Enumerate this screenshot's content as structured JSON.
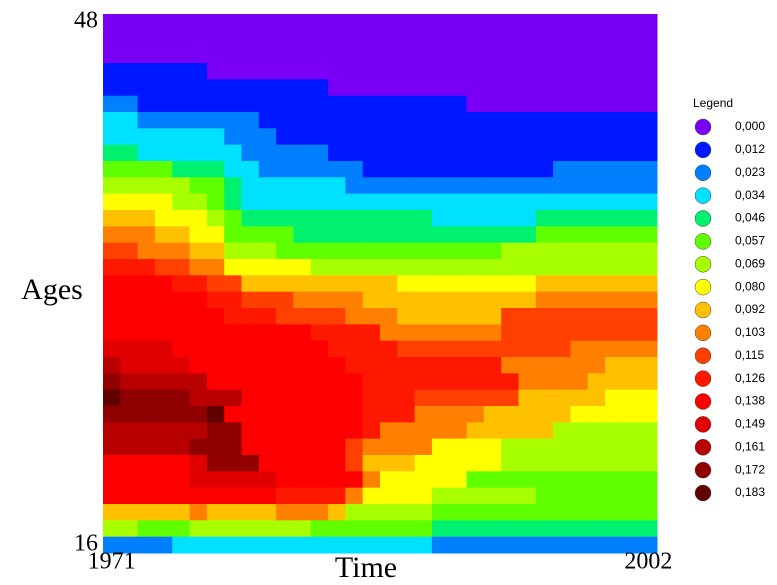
{
  "chart_data": {
    "type": "heatmap",
    "x_label": "Time",
    "y_label": "Ages",
    "xlim": [
      1971,
      2002
    ],
    "ylim": [
      16,
      48
    ],
    "xticks": [
      1971,
      2002
    ],
    "yticks": [
      16,
      48
    ],
    "x": [
      1971,
      1972,
      1973,
      1974,
      1975,
      1976,
      1977,
      1978,
      1979,
      1980,
      1981,
      1982,
      1983,
      1984,
      1985,
      1986,
      1987,
      1988,
      1989,
      1990,
      1991,
      1992,
      1993,
      1994,
      1995,
      1996,
      1997,
      1998,
      1999,
      2000,
      2001,
      2002
    ],
    "y": [
      48,
      47,
      46,
      45,
      44,
      43,
      42,
      41,
      40,
      39,
      38,
      37,
      36,
      35,
      34,
      33,
      32,
      31,
      30,
      29,
      28,
      27,
      26,
      25,
      24,
      23,
      22,
      21,
      20,
      19,
      18,
      17,
      16
    ],
    "z": [
      [
        0,
        0,
        0,
        0,
        0,
        0,
        0,
        0,
        0,
        0,
        0,
        0,
        0,
        0,
        0,
        0,
        0,
        0,
        0,
        0,
        0,
        0,
        0,
        0,
        0,
        0,
        0,
        0,
        0,
        0,
        0,
        0
      ],
      [
        0,
        0,
        0,
        0,
        0,
        0,
        0,
        0,
        0,
        0,
        0,
        0,
        0,
        0,
        0,
        0,
        0,
        0,
        0,
        0,
        0,
        0,
        0,
        0,
        0,
        0,
        0,
        0,
        0,
        0,
        0,
        0
      ],
      [
        0,
        0,
        0,
        0,
        0,
        0,
        0,
        0,
        0,
        0,
        0,
        0,
        0,
        0,
        0,
        0,
        0,
        0,
        0,
        0,
        0,
        0,
        0,
        0,
        0,
        0,
        0,
        0,
        0,
        0,
        0,
        0
      ],
      [
        0.012,
        0.012,
        0.012,
        0.012,
        0.012,
        0.012,
        0,
        0,
        0,
        0,
        0,
        0,
        0,
        0,
        0,
        0,
        0,
        0,
        0,
        0,
        0,
        0,
        0,
        0,
        0,
        0,
        0,
        0,
        0,
        0,
        0,
        0
      ],
      [
        0.012,
        0.012,
        0.012,
        0.012,
        0.012,
        0.012,
        0.012,
        0.012,
        0.012,
        0.012,
        0.012,
        0.012,
        0.012,
        0,
        0,
        0,
        0,
        0,
        0,
        0,
        0,
        0,
        0,
        0,
        0,
        0,
        0,
        0,
        0,
        0,
        0,
        0
      ],
      [
        0.023,
        0.023,
        0.012,
        0.012,
        0.012,
        0.012,
        0.012,
        0.012,
        0.012,
        0.012,
        0.012,
        0.012,
        0.012,
        0.012,
        0.012,
        0.012,
        0.012,
        0.012,
        0.012,
        0.012,
        0.012,
        0,
        0,
        0,
        0,
        0,
        0,
        0,
        0,
        0,
        0,
        0
      ],
      [
        0.034,
        0.034,
        0.023,
        0.023,
        0.023,
        0.023,
        0.023,
        0.023,
        0.023,
        0.012,
        0.012,
        0.012,
        0.012,
        0.012,
        0.012,
        0.012,
        0.012,
        0.012,
        0.012,
        0.012,
        0.012,
        0.012,
        0.012,
        0.012,
        0.012,
        0.012,
        0.012,
        0.012,
        0.012,
        0.012,
        0.012,
        0.012
      ],
      [
        0.034,
        0.034,
        0.034,
        0.034,
        0.034,
        0.034,
        0.034,
        0.023,
        0.023,
        0.023,
        0.012,
        0.012,
        0.012,
        0.012,
        0.012,
        0.012,
        0.012,
        0.012,
        0.012,
        0.012,
        0.012,
        0.012,
        0.012,
        0.012,
        0.012,
        0.012,
        0.012,
        0.012,
        0.012,
        0.012,
        0.012,
        0.012
      ],
      [
        0.046,
        0.046,
        0.034,
        0.034,
        0.034,
        0.034,
        0.034,
        0.034,
        0.023,
        0.023,
        0.023,
        0.023,
        0.023,
        0.012,
        0.012,
        0.012,
        0.012,
        0.012,
        0.012,
        0.012,
        0.012,
        0.012,
        0.012,
        0.012,
        0.012,
        0.012,
        0.012,
        0.012,
        0.012,
        0.012,
        0.012,
        0.012
      ],
      [
        0.057,
        0.057,
        0.057,
        0.057,
        0.046,
        0.046,
        0.046,
        0.034,
        0.034,
        0.023,
        0.023,
        0.023,
        0.023,
        0.023,
        0.023,
        0.012,
        0.012,
        0.012,
        0.012,
        0.012,
        0.012,
        0.012,
        0.012,
        0.012,
        0.012,
        0.012,
        0.023,
        0.023,
        0.023,
        0.023,
        0.023,
        0.023
      ],
      [
        0.069,
        0.069,
        0.069,
        0.069,
        0.069,
        0.057,
        0.057,
        0.046,
        0.034,
        0.034,
        0.034,
        0.034,
        0.034,
        0.034,
        0.023,
        0.023,
        0.023,
        0.023,
        0.023,
        0.023,
        0.023,
        0.023,
        0.023,
        0.023,
        0.023,
        0.023,
        0.023,
        0.023,
        0.023,
        0.023,
        0.023,
        0.023
      ],
      [
        0.08,
        0.08,
        0.08,
        0.08,
        0.069,
        0.069,
        0.057,
        0.046,
        0.034,
        0.034,
        0.034,
        0.034,
        0.034,
        0.034,
        0.034,
        0.034,
        0.034,
        0.034,
        0.034,
        0.034,
        0.034,
        0.034,
        0.034,
        0.034,
        0.034,
        0.034,
        0.034,
        0.034,
        0.034,
        0.034,
        0.034,
        0.034
      ],
      [
        0.092,
        0.092,
        0.092,
        0.08,
        0.08,
        0.08,
        0.069,
        0.057,
        0.046,
        0.046,
        0.046,
        0.046,
        0.046,
        0.046,
        0.046,
        0.046,
        0.046,
        0.046,
        0.046,
        0.034,
        0.034,
        0.034,
        0.034,
        0.034,
        0.034,
        0.046,
        0.046,
        0.046,
        0.046,
        0.046,
        0.046,
        0.046
      ],
      [
        0.103,
        0.103,
        0.103,
        0.092,
        0.092,
        0.08,
        0.08,
        0.057,
        0.057,
        0.057,
        0.057,
        0.046,
        0.046,
        0.046,
        0.046,
        0.046,
        0.046,
        0.046,
        0.046,
        0.046,
        0.046,
        0.046,
        0.046,
        0.046,
        0.046,
        0.057,
        0.057,
        0.057,
        0.057,
        0.057,
        0.057,
        0.057
      ],
      [
        0.115,
        0.115,
        0.103,
        0.103,
        0.103,
        0.092,
        0.092,
        0.069,
        0.069,
        0.069,
        0.057,
        0.057,
        0.057,
        0.057,
        0.057,
        0.057,
        0.057,
        0.057,
        0.057,
        0.057,
        0.057,
        0.057,
        0.057,
        0.069,
        0.069,
        0.069,
        0.069,
        0.069,
        0.069,
        0.069,
        0.069,
        0.069
      ],
      [
        0.126,
        0.126,
        0.126,
        0.115,
        0.115,
        0.103,
        0.103,
        0.08,
        0.08,
        0.08,
        0.08,
        0.08,
        0.069,
        0.069,
        0.069,
        0.069,
        0.069,
        0.069,
        0.069,
        0.069,
        0.069,
        0.069,
        0.069,
        0.069,
        0.069,
        0.069,
        0.069,
        0.069,
        0.069,
        0.069,
        0.069,
        0.069
      ],
      [
        0.138,
        0.138,
        0.138,
        0.138,
        0.126,
        0.126,
        0.115,
        0.115,
        0.092,
        0.092,
        0.092,
        0.092,
        0.092,
        0.092,
        0.092,
        0.092,
        0.092,
        0.08,
        0.08,
        0.08,
        0.08,
        0.08,
        0.08,
        0.08,
        0.08,
        0.092,
        0.092,
        0.092,
        0.092,
        0.092,
        0.092,
        0.092
      ],
      [
        0.138,
        0.138,
        0.138,
        0.138,
        0.138,
        0.138,
        0.126,
        0.126,
        0.115,
        0.115,
        0.115,
        0.103,
        0.103,
        0.103,
        0.103,
        0.092,
        0.092,
        0.092,
        0.092,
        0.092,
        0.092,
        0.092,
        0.092,
        0.092,
        0.092,
        0.103,
        0.103,
        0.103,
        0.103,
        0.103,
        0.103,
        0.103
      ],
      [
        0.138,
        0.138,
        0.138,
        0.138,
        0.138,
        0.138,
        0.138,
        0.126,
        0.126,
        0.126,
        0.115,
        0.115,
        0.115,
        0.115,
        0.103,
        0.103,
        0.103,
        0.092,
        0.092,
        0.092,
        0.092,
        0.092,
        0.092,
        0.115,
        0.115,
        0.115,
        0.115,
        0.115,
        0.115,
        0.115,
        0.115,
        0.115
      ],
      [
        0.138,
        0.138,
        0.138,
        0.138,
        0.138,
        0.138,
        0.138,
        0.138,
        0.138,
        0.138,
        0.138,
        0.138,
        0.126,
        0.126,
        0.126,
        0.126,
        0.103,
        0.103,
        0.103,
        0.103,
        0.103,
        0.103,
        0.103,
        0.115,
        0.115,
        0.115,
        0.115,
        0.115,
        0.115,
        0.115,
        0.115,
        0.115
      ],
      [
        0.149,
        0.149,
        0.149,
        0.149,
        0.138,
        0.138,
        0.138,
        0.138,
        0.138,
        0.138,
        0.138,
        0.138,
        0.138,
        0.126,
        0.126,
        0.126,
        0.126,
        0.115,
        0.115,
        0.115,
        0.115,
        0.115,
        0.115,
        0.115,
        0.115,
        0.115,
        0.115,
        0.103,
        0.103,
        0.103,
        0.103,
        0.103
      ],
      [
        0.161,
        0.149,
        0.149,
        0.149,
        0.149,
        0.138,
        0.138,
        0.138,
        0.138,
        0.138,
        0.138,
        0.138,
        0.138,
        0.138,
        0.126,
        0.126,
        0.126,
        0.126,
        0.126,
        0.126,
        0.126,
        0.126,
        0.126,
        0.103,
        0.103,
        0.103,
        0.103,
        0.103,
        0.103,
        0.092,
        0.092,
        0.092
      ],
      [
        0.172,
        0.161,
        0.161,
        0.161,
        0.161,
        0.161,
        0.138,
        0.138,
        0.138,
        0.138,
        0.138,
        0.138,
        0.138,
        0.138,
        0.138,
        0.126,
        0.126,
        0.126,
        0.126,
        0.126,
        0.126,
        0.126,
        0.126,
        0.126,
        0.103,
        0.103,
        0.103,
        0.103,
        0.092,
        0.092,
        0.092,
        0.092
      ],
      [
        0.183,
        0.172,
        0.172,
        0.172,
        0.172,
        0.161,
        0.161,
        0.161,
        0.138,
        0.138,
        0.138,
        0.138,
        0.138,
        0.138,
        0.138,
        0.126,
        0.126,
        0.126,
        0.115,
        0.115,
        0.115,
        0.115,
        0.115,
        0.115,
        0.092,
        0.092,
        0.092,
        0.092,
        0.092,
        0.08,
        0.08,
        0.08
      ],
      [
        0.172,
        0.172,
        0.172,
        0.172,
        0.172,
        0.172,
        0.183,
        0.138,
        0.138,
        0.138,
        0.138,
        0.138,
        0.138,
        0.138,
        0.138,
        0.126,
        0.126,
        0.126,
        0.103,
        0.103,
        0.103,
        0.103,
        0.092,
        0.092,
        0.092,
        0.092,
        0.092,
        0.08,
        0.08,
        0.08,
        0.08,
        0.08
      ],
      [
        0.161,
        0.161,
        0.161,
        0.161,
        0.161,
        0.161,
        0.172,
        0.172,
        0.138,
        0.138,
        0.138,
        0.138,
        0.138,
        0.138,
        0.138,
        0.126,
        0.103,
        0.103,
        0.103,
        0.103,
        0.103,
        0.092,
        0.092,
        0.092,
        0.092,
        0.092,
        0.069,
        0.069,
        0.069,
        0.069,
        0.069,
        0.069
      ],
      [
        0.161,
        0.161,
        0.161,
        0.161,
        0.161,
        0.172,
        0.172,
        0.172,
        0.138,
        0.138,
        0.138,
        0.138,
        0.138,
        0.138,
        0.115,
        0.103,
        0.103,
        0.103,
        0.103,
        0.08,
        0.08,
        0.08,
        0.08,
        0.069,
        0.069,
        0.069,
        0.069,
        0.069,
        0.069,
        0.069,
        0.069,
        0.069
      ],
      [
        0.138,
        0.138,
        0.138,
        0.138,
        0.138,
        0.149,
        0.172,
        0.172,
        0.172,
        0.138,
        0.138,
        0.138,
        0.138,
        0.138,
        0.115,
        0.092,
        0.092,
        0.092,
        0.08,
        0.08,
        0.08,
        0.08,
        0.08,
        0.069,
        0.069,
        0.069,
        0.069,
        0.069,
        0.069,
        0.069,
        0.069,
        0.069
      ],
      [
        0.138,
        0.138,
        0.138,
        0.138,
        0.138,
        0.149,
        0.149,
        0.149,
        0.149,
        0.149,
        0.138,
        0.138,
        0.138,
        0.138,
        0.138,
        0.103,
        0.08,
        0.08,
        0.08,
        0.08,
        0.08,
        0.057,
        0.057,
        0.057,
        0.057,
        0.057,
        0.057,
        0.057,
        0.057,
        0.057,
        0.057,
        0.057
      ],
      [
        0.138,
        0.138,
        0.138,
        0.138,
        0.138,
        0.138,
        0.138,
        0.138,
        0.138,
        0.138,
        0.126,
        0.126,
        0.126,
        0.126,
        0.103,
        0.08,
        0.08,
        0.08,
        0.08,
        0.069,
        0.069,
        0.069,
        0.069,
        0.069,
        0.069,
        0.057,
        0.057,
        0.057,
        0.057,
        0.057,
        0.057,
        0.057
      ],
      [
        0.092,
        0.092,
        0.092,
        0.092,
        0.092,
        0.103,
        0.092,
        0.092,
        0.092,
        0.092,
        0.103,
        0.103,
        0.103,
        0.092,
        0.069,
        0.069,
        0.069,
        0.069,
        0.069,
        0.057,
        0.057,
        0.057,
        0.057,
        0.057,
        0.057,
        0.057,
        0.057,
        0.057,
        0.057,
        0.057,
        0.057,
        0.057
      ],
      [
        0.069,
        0.069,
        0.057,
        0.057,
        0.057,
        0.069,
        0.069,
        0.069,
        0.069,
        0.069,
        0.069,
        0.069,
        0.057,
        0.057,
        0.057,
        0.057,
        0.057,
        0.057,
        0.057,
        0.046,
        0.046,
        0.046,
        0.046,
        0.046,
        0.046,
        0.046,
        0.046,
        0.046,
        0.046,
        0.046,
        0.046,
        0.046
      ],
      [
        0.023,
        0.023,
        0.023,
        0.023,
        0.034,
        0.034,
        0.034,
        0.034,
        0.034,
        0.034,
        0.034,
        0.034,
        0.034,
        0.034,
        0.034,
        0.034,
        0.034,
        0.034,
        0.034,
        0.023,
        0.023,
        0.023,
        0.023,
        0.023,
        0.023,
        0.023,
        0.023,
        0.023,
        0.023,
        0.023,
        0.023,
        0.023
      ]
    ],
    "colorbar": {
      "title": "Legend",
      "ticks": [
        {
          "value": 0,
          "label": "0,000"
        },
        {
          "value": 0.012,
          "label": "0,012"
        },
        {
          "value": 0.023,
          "label": "0,023"
        },
        {
          "value": 0.034,
          "label": "0,034"
        },
        {
          "value": 0.046,
          "label": "0,046"
        },
        {
          "value": 0.057,
          "label": "0,057"
        },
        {
          "value": 0.069,
          "label": "0,069"
        },
        {
          "value": 0.08,
          "label": "0,080"
        },
        {
          "value": 0.092,
          "label": "0,092"
        },
        {
          "value": 0.103,
          "label": "0,103"
        },
        {
          "value": 0.115,
          "label": "0,115"
        },
        {
          "value": 0.126,
          "label": "0,126"
        },
        {
          "value": 0.138,
          "label": "0,138"
        },
        {
          "value": 0.149,
          "label": "0,149"
        },
        {
          "value": 0.161,
          "label": "0,161"
        },
        {
          "value": 0.172,
          "label": "0,172"
        },
        {
          "value": 0.183,
          "label": "0,183"
        }
      ],
      "colors": [
        "#7a00f5",
        "#0018ff",
        "#0080ff",
        "#00e0ff",
        "#00f070",
        "#60ff00",
        "#a8ff00",
        "#ffff00",
        "#ffc000",
        "#ff8000",
        "#ff4000",
        "#ff1800",
        "#ff0000",
        "#e00000",
        "#b80000",
        "#900000",
        "#600000"
      ]
    }
  }
}
